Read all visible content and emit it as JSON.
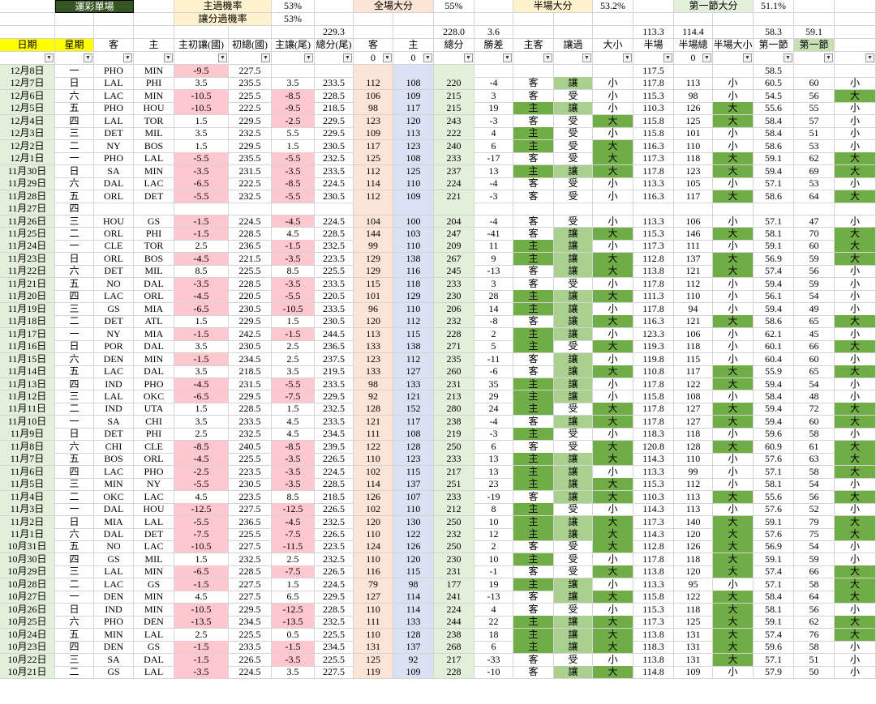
{
  "top_rows": [
    [
      null,
      "運彩單場",
      null,
      null,
      "主過機率",
      null,
      "53%",
      null,
      "全場大分",
      null,
      "55%",
      null,
      "半場大分",
      null,
      "53.2%",
      null,
      "第一節大分",
      null,
      "51.1%",
      null,
      null
    ],
    [
      null,
      null,
      null,
      null,
      "讓分過機率",
      null,
      "53%",
      null,
      null,
      null,
      null,
      null,
      null,
      null,
      null,
      null,
      null,
      null,
      null,
      null,
      null
    ],
    [
      null,
      null,
      null,
      null,
      null,
      null,
      null,
      "229.3",
      null,
      null,
      "228.0",
      "3.6",
      null,
      null,
      null,
      "113.3",
      "114.4",
      null,
      "58.3",
      "59.1",
      null
    ]
  ],
  "headers": [
    "日期",
    "星期",
    "客",
    "主",
    "主初讓(國)",
    "初總(國)",
    "主讓(尾)",
    "總分(尾)",
    "客",
    "主",
    "總分",
    "勝差",
    "主客",
    "讓過",
    "大小",
    "半場",
    "半場總",
    "半場大小",
    "第一節",
    "第一節",
    null
  ],
  "filters": [
    null,
    null,
    null,
    null,
    null,
    null,
    null,
    null,
    0,
    0,
    null,
    null,
    null,
    null,
    null,
    null,
    0,
    null,
    null,
    null,
    null
  ],
  "rows": [
    [
      "12月8日",
      "一",
      "PHO",
      "MIN",
      "-9.5",
      "227.5",
      null,
      null,
      null,
      null,
      null,
      null,
      null,
      null,
      null,
      "117.5",
      null,
      null,
      "58.5",
      null,
      null
    ],
    [
      "12月7日",
      "日",
      "LAL",
      "PHI",
      "3.5",
      "235.5",
      "3.5",
      "233.5",
      "112",
      "108",
      "220",
      "-4",
      "客",
      "讓",
      "小",
      "117.8",
      "113",
      "小",
      "60.5",
      "60",
      "小"
    ],
    [
      "12月6日",
      "六",
      "LAC",
      "MIN",
      "-10.5",
      "225.5",
      "-8.5",
      "228.5",
      "106",
      "109",
      "215",
      "3",
      "客",
      "受",
      "小",
      "115.3",
      "98",
      "小",
      "54.5",
      "56",
      "大"
    ],
    [
      "12月5日",
      "五",
      "PHO",
      "HOU",
      "-10.5",
      "222.5",
      "-9.5",
      "218.5",
      "98",
      "117",
      "215",
      "19",
      "主",
      "讓",
      "小",
      "110.3",
      "126",
      "大",
      "55.6",
      "55",
      "小"
    ],
    [
      "12月4日",
      "四",
      "LAL",
      "TOR",
      "1.5",
      "229.5",
      "-2.5",
      "229.5",
      "123",
      "120",
      "243",
      "-3",
      "客",
      "受",
      "大",
      "115.8",
      "125",
      "大",
      "58.4",
      "57",
      "小"
    ],
    [
      "12月3日",
      "三",
      "DET",
      "MIL",
      "3.5",
      "232.5",
      "5.5",
      "229.5",
      "109",
      "113",
      "222",
      "4",
      "主",
      "受",
      "小",
      "115.8",
      "101",
      "小",
      "58.4",
      "51",
      "小"
    ],
    [
      "12月2日",
      "二",
      "NY",
      "BOS",
      "1.5",
      "229.5",
      "1.5",
      "230.5",
      "117",
      "123",
      "240",
      "6",
      "主",
      "受",
      "大",
      "116.3",
      "110",
      "小",
      "58.6",
      "53",
      "小"
    ],
    [
      "12月1日",
      "一",
      "PHO",
      "LAL",
      "-5.5",
      "235.5",
      "-5.5",
      "232.5",
      "125",
      "108",
      "233",
      "-17",
      "客",
      "受",
      "大",
      "117.3",
      "118",
      "大",
      "59.1",
      "62",
      "大"
    ],
    [
      "11月30日",
      "日",
      "SA",
      "MIN",
      "-3.5",
      "231.5",
      "-3.5",
      "233.5",
      "112",
      "125",
      "237",
      "13",
      "主",
      "讓",
      "大",
      "117.8",
      "123",
      "大",
      "59.4",
      "69",
      "大"
    ],
    [
      "11月29日",
      "六",
      "DAL",
      "LAC",
      "-6.5",
      "222.5",
      "-8.5",
      "224.5",
      "114",
      "110",
      "224",
      "-4",
      "客",
      "受",
      "小",
      "113.3",
      "105",
      "小",
      "57.1",
      "53",
      "小"
    ],
    [
      "11月28日",
      "五",
      "ORL",
      "DET",
      "-5.5",
      "232.5",
      "-5.5",
      "230.5",
      "112",
      "109",
      "221",
      "-3",
      "客",
      "受",
      "小",
      "116.3",
      "117",
      "大",
      "58.6",
      "64",
      "大"
    ],
    [
      "11月27日",
      "四",
      null,
      null,
      null,
      null,
      null,
      null,
      null,
      null,
      null,
      null,
      null,
      null,
      null,
      null,
      null,
      null,
      null,
      null,
      null
    ],
    [
      "11月26日",
      "三",
      "HOU",
      "GS",
      "-1.5",
      "224.5",
      "-4.5",
      "224.5",
      "104",
      "100",
      "204",
      "-4",
      "客",
      "受",
      "小",
      "113.3",
      "106",
      "小",
      "57.1",
      "47",
      "小"
    ],
    [
      "11月25日",
      "二",
      "ORL",
      "PHI",
      "-1.5",
      "228.5",
      "4.5",
      "228.5",
      "144",
      "103",
      "247",
      "-41",
      "客",
      "讓",
      "大",
      "115.3",
      "146",
      "大",
      "58.1",
      "70",
      "大"
    ],
    [
      "11月24日",
      "一",
      "CLE",
      "TOR",
      "2.5",
      "236.5",
      "-1.5",
      "232.5",
      "99",
      "110",
      "209",
      "11",
      "主",
      "讓",
      "小",
      "117.3",
      "111",
      "小",
      "59.1",
      "60",
      "大"
    ],
    [
      "11月23日",
      "日",
      "ORL",
      "BOS",
      "-4.5",
      "221.5",
      "-3.5",
      "223.5",
      "129",
      "138",
      "267",
      "9",
      "主",
      "讓",
      "大",
      "112.8",
      "137",
      "大",
      "56.9",
      "59",
      "大"
    ],
    [
      "11月22日",
      "六",
      "DET",
      "MIL",
      "8.5",
      "225.5",
      "8.5",
      "225.5",
      "129",
      "116",
      "245",
      "-13",
      "客",
      "讓",
      "大",
      "113.8",
      "121",
      "大",
      "57.4",
      "56",
      "小"
    ],
    [
      "11月21日",
      "五",
      "NO",
      "DAL",
      "-3.5",
      "228.5",
      "-3.5",
      "233.5",
      "115",
      "118",
      "233",
      "3",
      "客",
      "受",
      "小",
      "117.8",
      "112",
      "小",
      "59.4",
      "59",
      "小"
    ],
    [
      "11月20日",
      "四",
      "LAC",
      "ORL",
      "-4.5",
      "220.5",
      "-5.5",
      "220.5",
      "101",
      "129",
      "230",
      "28",
      "主",
      "讓",
      "大",
      "111.3",
      "110",
      "小",
      "56.1",
      "54",
      "小"
    ],
    [
      "11月19日",
      "三",
      "GS",
      "MIA",
      "-6.5",
      "230.5",
      "-10.5",
      "233.5",
      "96",
      "110",
      "206",
      "14",
      "主",
      "讓",
      "小",
      "117.8",
      "94",
      "小",
      "59.4",
      "49",
      "小"
    ],
    [
      "11月18日",
      "二",
      "DET",
      "ATL",
      "1.5",
      "229.5",
      "1.5",
      "230.5",
      "120",
      "112",
      "232",
      "-8",
      "客",
      "讓",
      "大",
      "116.3",
      "121",
      "大",
      "58.6",
      "65",
      "大"
    ],
    [
      "11月17日",
      "一",
      "NY",
      "MIA",
      "-1.5",
      "242.5",
      "-1.5",
      "244.5",
      "113",
      "115",
      "228",
      "2",
      "主",
      "讓",
      "小",
      "123.3",
      "106",
      "小",
      "62.1",
      "45",
      "小"
    ],
    [
      "11月16日",
      "日",
      "POR",
      "DAL",
      "3.5",
      "230.5",
      "2.5",
      "236.5",
      "133",
      "138",
      "271",
      "5",
      "主",
      "受",
      "大",
      "119.3",
      "118",
      "小",
      "60.1",
      "66",
      "大"
    ],
    [
      "11月15日",
      "六",
      "DEN",
      "MIN",
      "-1.5",
      "234.5",
      "2.5",
      "237.5",
      "123",
      "112",
      "235",
      "-11",
      "客",
      "讓",
      "小",
      "119.8",
      "115",
      "小",
      "60.4",
      "60",
      "小"
    ],
    [
      "11月14日",
      "五",
      "LAC",
      "DAL",
      "3.5",
      "218.5",
      "3.5",
      "219.5",
      "133",
      "127",
      "260",
      "-6",
      "客",
      "讓",
      "大",
      "110.8",
      "117",
      "大",
      "55.9",
      "65",
      "大"
    ],
    [
      "11月13日",
      "四",
      "IND",
      "PHO",
      "-4.5",
      "231.5",
      "-5.5",
      "233.5",
      "98",
      "133",
      "231",
      "35",
      "主",
      "讓",
      "小",
      "117.8",
      "122",
      "大",
      "59.4",
      "54",
      "小"
    ],
    [
      "11月12日",
      "三",
      "LAL",
      "OKC",
      "-6.5",
      "229.5",
      "-7.5",
      "229.5",
      "92",
      "121",
      "213",
      "29",
      "主",
      "讓",
      "小",
      "115.8",
      "108",
      "小",
      "58.4",
      "48",
      "小"
    ],
    [
      "11月11日",
      "二",
      "IND",
      "UTA",
      "1.5",
      "228.5",
      "1.5",
      "232.5",
      "128",
      "152",
      "280",
      "24",
      "主",
      "受",
      "大",
      "117.8",
      "127",
      "大",
      "59.4",
      "72",
      "大"
    ],
    [
      "11月10日",
      "一",
      "SA",
      "CHI",
      "3.5",
      "233.5",
      "4.5",
      "233.5",
      "121",
      "117",
      "238",
      "-4",
      "客",
      "讓",
      "大",
      "117.8",
      "127",
      "大",
      "59.4",
      "60",
      "大"
    ],
    [
      "11月9日",
      "日",
      "DET",
      "PHI",
      "2.5",
      "232.5",
      "4.5",
      "234.5",
      "111",
      "108",
      "219",
      "-3",
      "主",
      "受",
      "小",
      "118.3",
      "118",
      "小",
      "59.6",
      "58",
      "小"
    ],
    [
      "11月8日",
      "六",
      "CHI",
      "CLE",
      "-8.5",
      "240.5",
      "-8.5",
      "239.5",
      "122",
      "128",
      "250",
      "6",
      "客",
      "受",
      "大",
      "120.8",
      "128",
      "大",
      "60.9",
      "61",
      "大"
    ],
    [
      "11月7日",
      "五",
      "BOS",
      "ORL",
      "-4.5",
      "225.5",
      "-3.5",
      "226.5",
      "110",
      "123",
      "233",
      "13",
      "主",
      "讓",
      "大",
      "114.3",
      "110",
      "小",
      "57.6",
      "63",
      "大"
    ],
    [
      "11月6日",
      "四",
      "LAC",
      "PHO",
      "-2.5",
      "223.5",
      "-3.5",
      "224.5",
      "102",
      "115",
      "217",
      "13",
      "主",
      "讓",
      "小",
      "113.3",
      "99",
      "小",
      "57.1",
      "58",
      "大"
    ],
    [
      "11月5日",
      "三",
      "MIN",
      "NY",
      "-5.5",
      "230.5",
      "-3.5",
      "228.5",
      "114",
      "137",
      "251",
      "23",
      "主",
      "讓",
      "大",
      "115.3",
      "112",
      "小",
      "58.1",
      "54",
      "小"
    ],
    [
      "11月4日",
      "二",
      "OKC",
      "LAC",
      "4.5",
      "223.5",
      "8.5",
      "218.5",
      "126",
      "107",
      "233",
      "-19",
      "客",
      "讓",
      "大",
      "110.3",
      "113",
      "大",
      "55.6",
      "56",
      "大"
    ],
    [
      "11月3日",
      "一",
      "DAL",
      "HOU",
      "-12.5",
      "227.5",
      "-12.5",
      "226.5",
      "102",
      "110",
      "212",
      "8",
      "主",
      "受",
      "小",
      "114.3",
      "113",
      "小",
      "57.6",
      "52",
      "小"
    ],
    [
      "11月2日",
      "日",
      "MIA",
      "LAL",
      "-5.5",
      "236.5",
      "-4.5",
      "232.5",
      "120",
      "130",
      "250",
      "10",
      "主",
      "讓",
      "大",
      "117.3",
      "140",
      "大",
      "59.1",
      "79",
      "大"
    ],
    [
      "11月1日",
      "六",
      "DAL",
      "DET",
      "-7.5",
      "225.5",
      "-7.5",
      "226.5",
      "110",
      "122",
      "232",
      "12",
      "主",
      "讓",
      "大",
      "114.3",
      "120",
      "大",
      "57.6",
      "75",
      "大"
    ],
    [
      "10月31日",
      "五",
      "NO",
      "LAC",
      "-10.5",
      "227.5",
      "-11.5",
      "223.5",
      "124",
      "126",
      "250",
      "2",
      "客",
      "受",
      "大",
      "112.8",
      "126",
      "大",
      "56.9",
      "54",
      "小"
    ],
    [
      "10月30日",
      "四",
      "GS",
      "MIL",
      "1.5",
      "232.5",
      "2.5",
      "232.5",
      "110",
      "120",
      "230",
      "10",
      "主",
      "受",
      "小",
      "117.8",
      "118",
      "大",
      "59.1",
      "59",
      "小"
    ],
    [
      "10月29日",
      "三",
      "LAL",
      "MIN",
      "-6.5",
      "228.5",
      "-7.5",
      "226.5",
      "116",
      "115",
      "231",
      "-1",
      "客",
      "受",
      "大",
      "113.8",
      "120",
      "大",
      "57.4",
      "66",
      "大"
    ],
    [
      "10月28日",
      "二",
      "LAC",
      "GS",
      "-1.5",
      "227.5",
      "1.5",
      "224.5",
      "79",
      "98",
      "177",
      "19",
      "主",
      "讓",
      "小",
      "113.3",
      "95",
      "小",
      "57.1",
      "58",
      "大"
    ],
    [
      "10月27日",
      "一",
      "DEN",
      "MIN",
      "4.5",
      "227.5",
      "6.5",
      "229.5",
      "127",
      "114",
      "241",
      "-13",
      "客",
      "讓",
      "大",
      "115.8",
      "122",
      "大",
      "58.4",
      "64",
      "大"
    ],
    [
      "10月26日",
      "日",
      "IND",
      "MIN",
      "-10.5",
      "229.5",
      "-12.5",
      "228.5",
      "110",
      "114",
      "224",
      "4",
      "客",
      "受",
      "小",
      "115.3",
      "118",
      "大",
      "58.1",
      "56",
      "小"
    ],
    [
      "10月25日",
      "六",
      "PHO",
      "DEN",
      "-13.5",
      "234.5",
      "-13.5",
      "232.5",
      "111",
      "133",
      "244",
      "22",
      "主",
      "讓",
      "大",
      "117.3",
      "125",
      "大",
      "59.1",
      "62",
      "大"
    ],
    [
      "10月24日",
      "五",
      "MIN",
      "LAL",
      "2.5",
      "225.5",
      "0.5",
      "225.5",
      "110",
      "128",
      "238",
      "18",
      "主",
      "讓",
      "大",
      "113.8",
      "131",
      "大",
      "57.4",
      "76",
      "大"
    ],
    [
      "10月23日",
      "四",
      "DEN",
      "GS",
      "-1.5",
      "233.5",
      "-1.5",
      "234.5",
      "131",
      "137",
      "268",
      "6",
      "主",
      "讓",
      "大",
      "118.3",
      "131",
      "大",
      "59.6",
      "58",
      "小"
    ],
    [
      "10月22日",
      "三",
      "SA",
      "DAL",
      "-1.5",
      "226.5",
      "-3.5",
      "225.5",
      "125",
      "92",
      "217",
      "-33",
      "客",
      "受",
      "小",
      "113.8",
      "131",
      "大",
      "57.1",
      "51",
      "小"
    ],
    [
      "10月21日",
      "二",
      "GS",
      "LAL",
      "-3.5",
      "224.5",
      "3.5",
      "227.5",
      "119",
      "109",
      "228",
      "-10",
      "客",
      "讓",
      "大",
      "114.8",
      "109",
      "小",
      "57.9",
      "50",
      "小"
    ]
  ]
}
